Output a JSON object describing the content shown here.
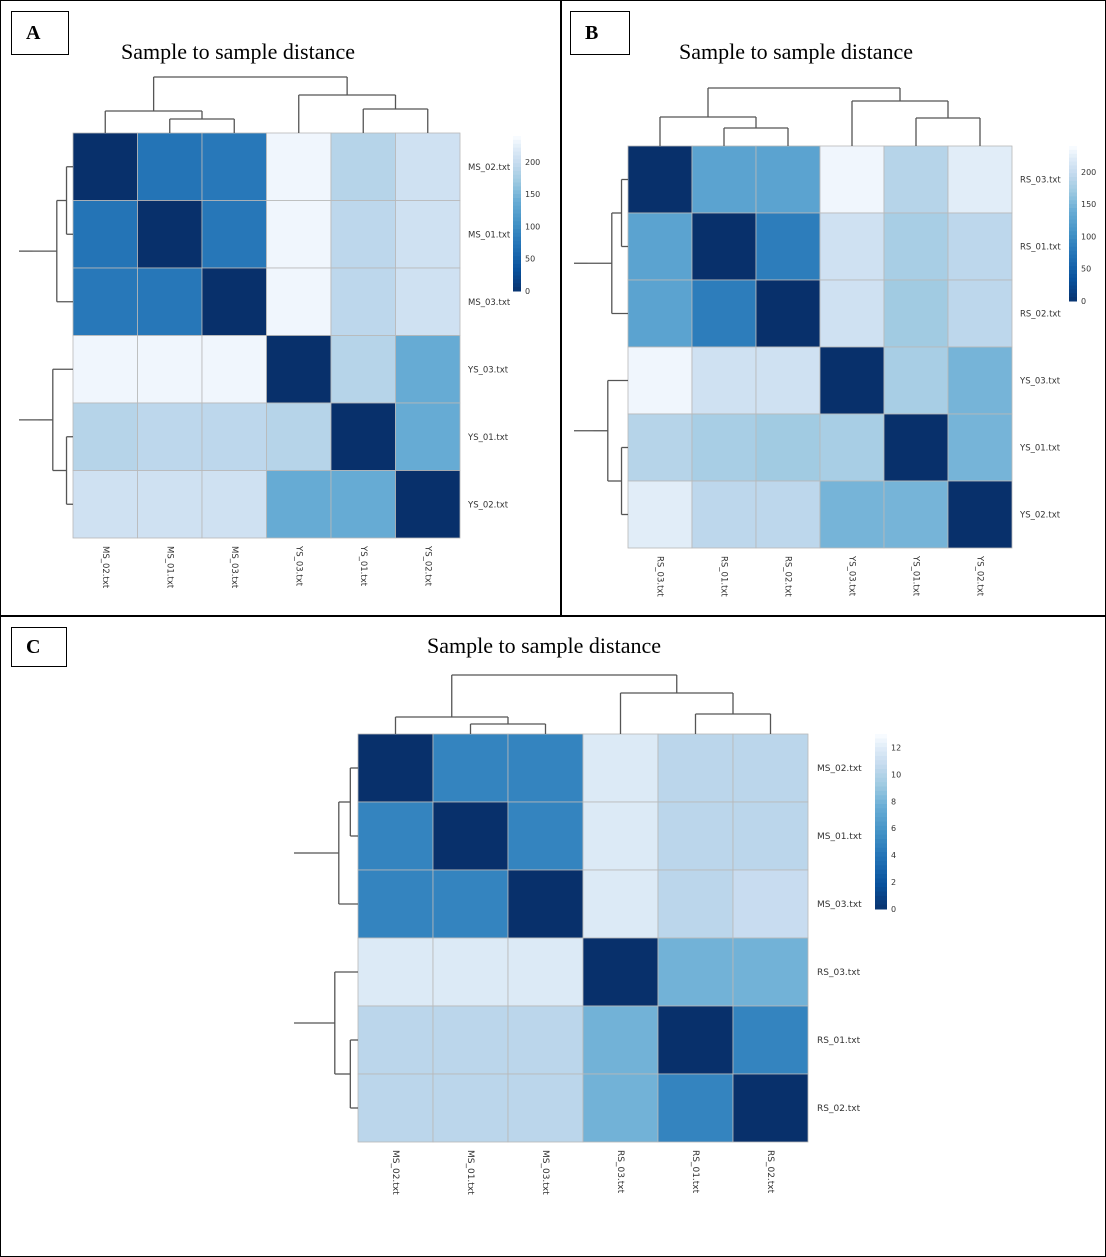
{
  "colors": {
    "low": "#08306b",
    "high": "#f7fbff",
    "grid": "#b8b8b8",
    "dendrogram": "#555555"
  },
  "panels": [
    {
      "letter": "A",
      "title": "Sample to sample distance"
    },
    {
      "letter": "B",
      "title": "Sample to sample distance"
    },
    {
      "letter": "C",
      "title": "Sample to sample distance"
    }
  ],
  "chart_data": [
    {
      "type": "heatmap",
      "title": "Sample to sample distance",
      "row_labels": [
        "MS_02.txt",
        "MS_01.txt",
        "MS_03.txt",
        "YS_03.txt",
        "YS_01.txt",
        "YS_02.txt"
      ],
      "col_labels": [
        "MS_02.txt",
        "MS_01.txt",
        "MS_03.txt",
        "YS_03.txt",
        "YS_01.txt",
        "YS_02.txt"
      ],
      "values": [
        [
          0,
          75,
          80,
          235,
          190,
          210
        ],
        [
          75,
          0,
          78,
          235,
          195,
          210
        ],
        [
          80,
          78,
          0,
          235,
          195,
          210
        ],
        [
          235,
          235,
          235,
          0,
          190,
          140
        ],
        [
          190,
          195,
          195,
          190,
          0,
          140
        ],
        [
          210,
          210,
          210,
          140,
          140,
          0
        ]
      ],
      "scale": {
        "min": 0,
        "max": 240,
        "ticks": [
          0,
          50,
          100,
          150,
          200
        ]
      }
    },
    {
      "type": "heatmap",
      "title": "Sample to sample distance",
      "row_labels": [
        "RS_03.txt",
        "RS_01.txt",
        "RS_02.txt",
        "YS_03.txt",
        "YS_01.txt",
        "YS_02.txt"
      ],
      "col_labels": [
        "RS_03.txt",
        "RS_01.txt",
        "RS_02.txt",
        "YS_03.txt",
        "YS_01.txt",
        "YS_02.txt"
      ],
      "values": [
        [
          0,
          130,
          130,
          235,
          190,
          225
        ],
        [
          130,
          0,
          85,
          210,
          180,
          195
        ],
        [
          130,
          85,
          0,
          210,
          175,
          195
        ],
        [
          235,
          210,
          210,
          0,
          180,
          150
        ],
        [
          190,
          180,
          175,
          180,
          0,
          150
        ],
        [
          225,
          195,
          195,
          150,
          150,
          0
        ]
      ],
      "scale": {
        "min": 0,
        "max": 240,
        "ticks": [
          0,
          50,
          100,
          150,
          200
        ]
      }
    },
    {
      "type": "heatmap",
      "title": "Sample to sample distance",
      "row_labels": [
        "MS_02.txt",
        "MS_01.txt",
        "MS_03.txt",
        "RS_03.txt",
        "RS_01.txt",
        "RS_02.txt"
      ],
      "col_labels": [
        "MS_02.txt",
        "MS_01.txt",
        "MS_03.txt",
        "RS_03.txt",
        "RS_01.txt",
        "RS_02.txt"
      ],
      "values": [
        [
          0,
          5,
          5,
          12,
          10.5,
          10.5
        ],
        [
          5,
          0,
          5,
          12,
          10.5,
          10.5
        ],
        [
          5,
          5,
          0,
          12,
          10.5,
          11
        ],
        [
          12,
          12,
          12,
          0,
          8,
          8
        ],
        [
          10.5,
          10.5,
          10.5,
          8,
          0,
          5
        ],
        [
          10.5,
          10.5,
          10.5,
          8,
          5,
          0
        ]
      ],
      "scale": {
        "min": 0,
        "max": 13,
        "ticks": [
          0,
          2,
          4,
          6,
          8,
          10,
          12
        ]
      }
    }
  ]
}
